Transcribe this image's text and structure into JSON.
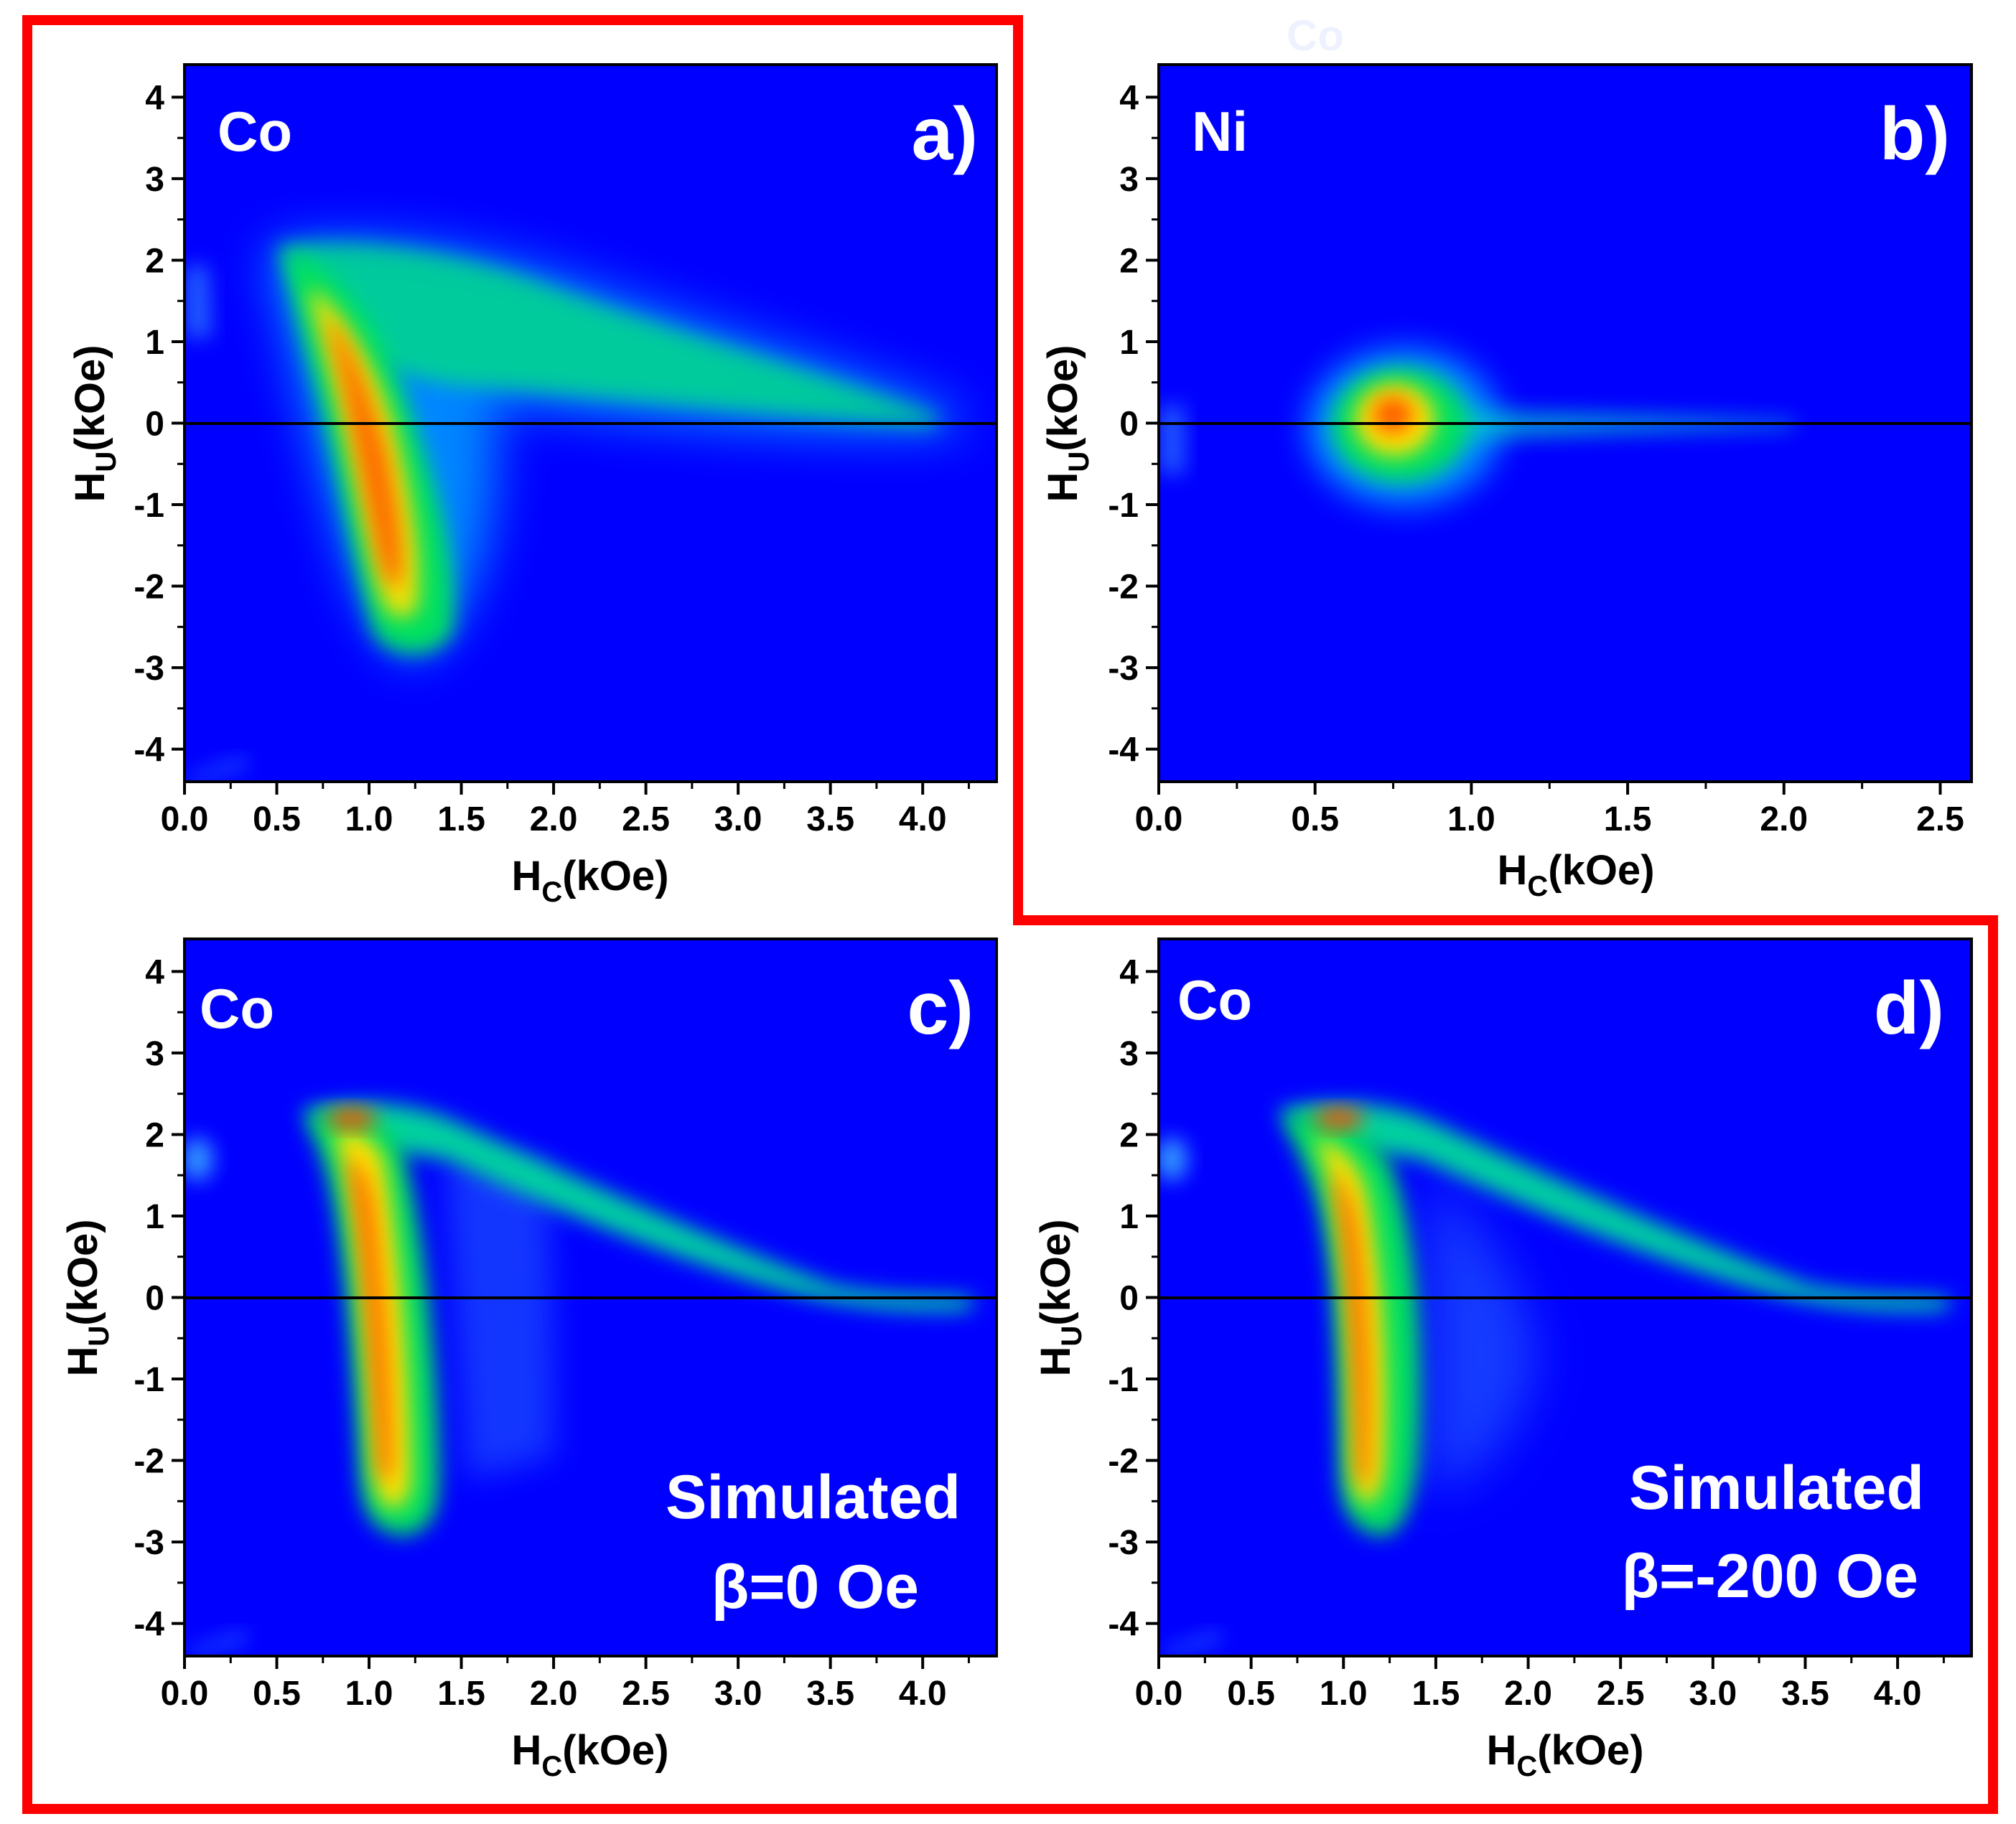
{
  "figure": {
    "description_colors": {
      "background": "#0000ff",
      "highlight": "#ff0000",
      "zero_line": "#000000"
    },
    "top_faint_label": "Co"
  },
  "chart_data": [
    {
      "id": "a",
      "type": "heatmap",
      "sample": "Co",
      "panel_label": "a)",
      "xlabel": {
        "main": "H",
        "sub": "C",
        "unit": "(kOe)"
      },
      "ylabel": {
        "main": "H",
        "sub": "U",
        "unit": "(kOe)"
      },
      "xlim": [
        0,
        4.4
      ],
      "ylim": [
        -4.4,
        4.4
      ],
      "xticks": [
        0.0,
        0.5,
        1.0,
        1.5,
        2.0,
        2.5,
        3.0,
        3.5,
        4.0
      ],
      "xtick_labels": [
        "0.0",
        "0.5",
        "1.0",
        "1.5",
        "2.0",
        "2.5",
        "3.0",
        "3.5",
        "4.0"
      ],
      "yticks": [
        4,
        3,
        2,
        1,
        0,
        -1,
        -2,
        -3,
        -4
      ],
      "ytick_labels": [
        "4",
        "3",
        "2",
        "1",
        "0",
        "-1",
        "-2",
        "-3",
        "-4"
      ],
      "zero_line": true,
      "annotations": []
    },
    {
      "id": "b",
      "type": "heatmap",
      "sample": "Ni",
      "panel_label": "b)",
      "xlabel": {
        "main": "H",
        "sub": "C",
        "unit": "(kOe)"
      },
      "ylabel": {
        "main": "H",
        "sub": "U",
        "unit": "(kOe)"
      },
      "xlim": [
        0,
        2.6
      ],
      "ylim": [
        -4.4,
        4.4
      ],
      "xticks": [
        0.0,
        0.5,
        1.0,
        1.5,
        2.0,
        2.5
      ],
      "xtick_labels": [
        "0.0",
        "0.5",
        "1.0",
        "1.5",
        "2.0",
        "2.5"
      ],
      "yticks": [
        4,
        3,
        2,
        1,
        0,
        -1,
        -2,
        -3,
        -4
      ],
      "ytick_labels": [
        "4",
        "3",
        "2",
        "1",
        "0",
        "-1",
        "-2",
        "-3",
        "-4"
      ],
      "zero_line": true,
      "annotations": []
    },
    {
      "id": "c",
      "type": "heatmap",
      "sample": "Co",
      "panel_label": "c)",
      "xlabel": {
        "main": "H",
        "sub": "C",
        "unit": "(kOe)"
      },
      "ylabel": {
        "main": "H",
        "sub": "U",
        "unit": "(kOe)"
      },
      "xlim": [
        0,
        4.4
      ],
      "ylim": [
        -4.4,
        4.4
      ],
      "xticks": [
        0.0,
        0.5,
        1.0,
        1.5,
        2.0,
        2.5,
        3.0,
        3.5,
        4.0
      ],
      "xtick_labels": [
        "0.0",
        "0.5",
        "1.0",
        "1.5",
        "2.0",
        "2.5",
        "3.0",
        "3.5",
        "4.0"
      ],
      "yticks": [
        4,
        3,
        2,
        1,
        0,
        -1,
        -2,
        -3,
        -4
      ],
      "ytick_labels": [
        "4",
        "3",
        "2",
        "1",
        "0",
        "-1",
        "-2",
        "-3",
        "-4"
      ],
      "zero_line": true,
      "annotations": [
        "Simulated",
        "β=0 Oe"
      ]
    },
    {
      "id": "d",
      "type": "heatmap",
      "sample": "Co",
      "panel_label": "d)",
      "xlabel": {
        "main": "H",
        "sub": "C",
        "unit": "(kOe)"
      },
      "ylabel": {
        "main": "H",
        "sub": "U",
        "unit": "(kOe)"
      },
      "xlim": [
        0,
        4.4
      ],
      "ylim": [
        -4.4,
        4.4
      ],
      "xticks": [
        0.0,
        0.5,
        1.0,
        1.5,
        2.0,
        2.5,
        3.0,
        3.5,
        4.0
      ],
      "xtick_labels": [
        "0.0",
        "0.5",
        "1.0",
        "1.5",
        "2.0",
        "2.5",
        "3.0",
        "3.5",
        "4.0"
      ],
      "yticks": [
        4,
        3,
        2,
        1,
        0,
        -1,
        -2,
        -3,
        -4
      ],
      "ytick_labels": [
        "4",
        "3",
        "2",
        "1",
        "0",
        "-1",
        "-2",
        "-3",
        "-4"
      ],
      "zero_line": true,
      "annotations": [
        "Simulated",
        "β=-200 Oe"
      ]
    }
  ]
}
